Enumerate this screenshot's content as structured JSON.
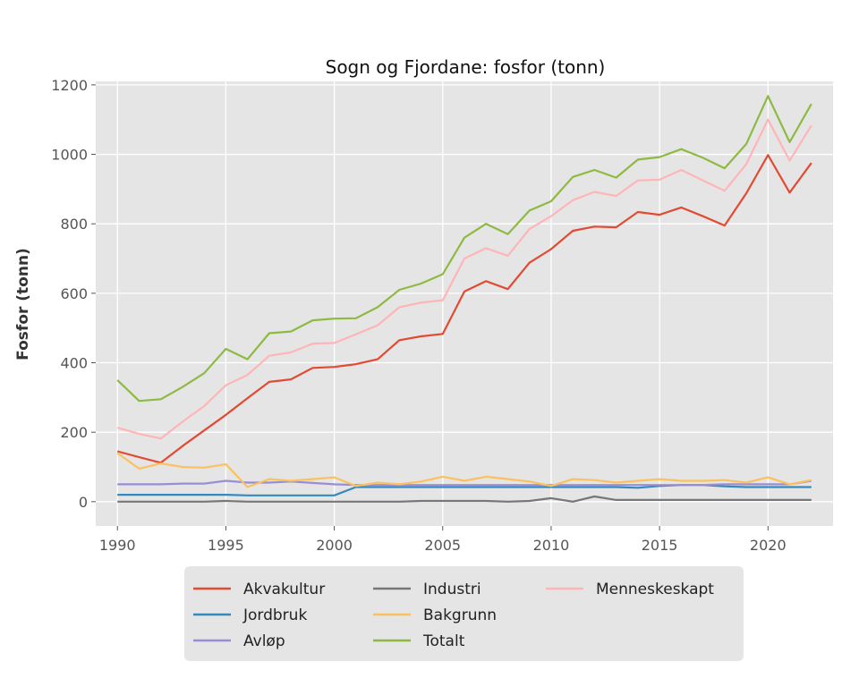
{
  "chart_data": {
    "type": "line",
    "title": "Sogn og Fjordane: fosfor (tonn)",
    "xlabel": "",
    "ylabel": "Fosfor (tonn)",
    "xlim": [
      1989,
      2023
    ],
    "ylim": [
      -70,
      1210
    ],
    "x_ticks": [
      1990,
      1995,
      2000,
      2005,
      2010,
      2015,
      2020
    ],
    "y_ticks": [
      0,
      200,
      400,
      600,
      800,
      1000,
      1200
    ],
    "grid": true,
    "legend_position": "bottom",
    "x": [
      1990,
      1991,
      1992,
      1993,
      1994,
      1995,
      1996,
      1997,
      1998,
      1999,
      2000,
      2001,
      2002,
      2003,
      2004,
      2005,
      2006,
      2007,
      2008,
      2009,
      2010,
      2011,
      2012,
      2013,
      2014,
      2015,
      2016,
      2017,
      2018,
      2019,
      2020,
      2021,
      2022
    ],
    "series": [
      {
        "name": "Akvakultur",
        "color": "#e24a33",
        "values": [
          145,
          128,
          112,
          160,
          205,
          250,
          298,
          345,
          352,
          385,
          388,
          396,
          410,
          465,
          476,
          483,
          605,
          635,
          612,
          688,
          727,
          780,
          792,
          790,
          834,
          826,
          847,
          822,
          795,
          888,
          998,
          890,
          975
        ]
      },
      {
        "name": "Jordbruk",
        "color": "#348abd",
        "values": [
          20,
          20,
          20,
          20,
          20,
          20,
          18,
          18,
          18,
          18,
          18,
          42,
          42,
          42,
          42,
          42,
          42,
          42,
          42,
          42,
          42,
          42,
          42,
          42,
          40,
          45,
          48,
          48,
          44,
          42,
          42,
          42,
          42
        ]
      },
      {
        "name": "Avløp",
        "color": "#988ed5",
        "values": [
          50,
          50,
          50,
          52,
          52,
          60,
          55,
          55,
          58,
          54,
          50,
          48,
          48,
          48,
          48,
          48,
          48,
          48,
          48,
          48,
          48,
          48,
          48,
          48,
          48,
          48,
          48,
          48,
          50,
          50,
          50,
          50,
          60
        ]
      },
      {
        "name": "Industri",
        "color": "#777777",
        "values": [
          0,
          0,
          0,
          0,
          0,
          2,
          0,
          0,
          0,
          0,
          0,
          0,
          0,
          0,
          2,
          2,
          2,
          2,
          0,
          2,
          10,
          0,
          15,
          5,
          5,
          5,
          5,
          5,
          5,
          5,
          5,
          5,
          5
        ]
      },
      {
        "name": "Bakgrunn",
        "color": "#fbc15e",
        "values": [
          140,
          95,
          110,
          100,
          98,
          108,
          42,
          65,
          60,
          65,
          70,
          45,
          55,
          50,
          58,
          72,
          60,
          72,
          65,
          58,
          45,
          65,
          62,
          55,
          60,
          65,
          60,
          60,
          62,
          55,
          70,
          50,
          62
        ]
      },
      {
        "name": "Totalt",
        "color": "#8eba42",
        "values": [
          350,
          290,
          295,
          330,
          370,
          440,
          410,
          485,
          490,
          522,
          527,
          528,
          560,
          610,
          628,
          655,
          760,
          800,
          770,
          838,
          865,
          935,
          955,
          933,
          985,
          992,
          1015,
          990,
          960,
          1030,
          1168,
          1035,
          1145
        ]
      },
      {
        "name": "Menneskeskapt",
        "color": "#ffb5b8",
        "values": [
          213,
          195,
          182,
          230,
          275,
          335,
          365,
          420,
          430,
          455,
          457,
          482,
          508,
          560,
          573,
          580,
          700,
          730,
          708,
          785,
          822,
          868,
          892,
          880,
          925,
          927,
          955,
          925,
          895,
          972,
          1100,
          982,
          1083
        ]
      }
    ]
  }
}
